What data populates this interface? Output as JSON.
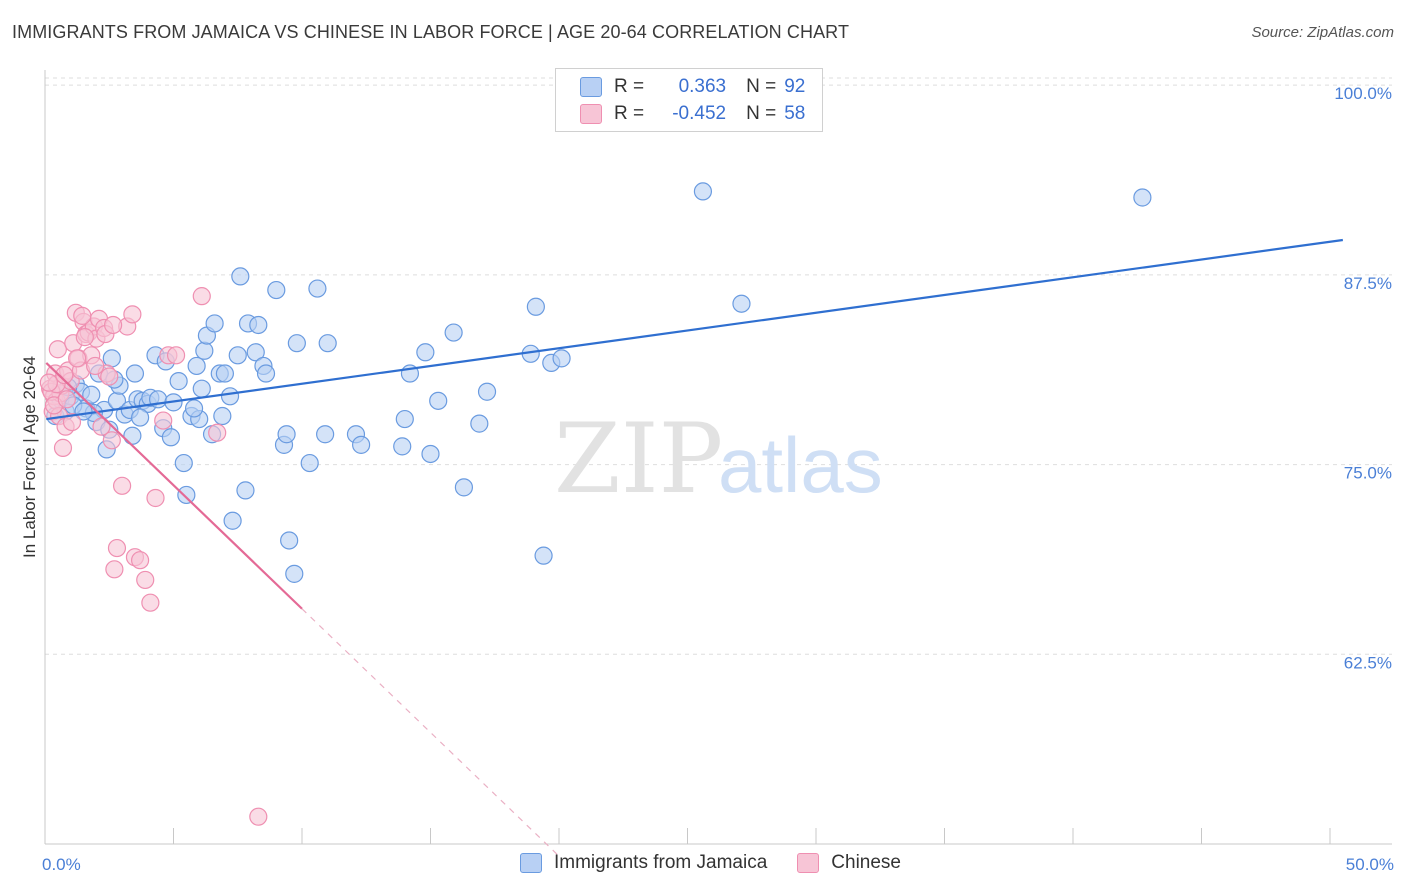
{
  "title": "IMMIGRANTS FROM JAMAICA VS CHINESE IN LABOR FORCE | AGE 20-64 CORRELATION CHART",
  "source": "Source: ZipAtlas.com",
  "watermark": {
    "zip": "ZIP",
    "atlas": "atlas"
  },
  "legend": {
    "rows": [
      {
        "r_label": "R =",
        "r_value": "0.363",
        "n_label": "N =",
        "n_value": "92"
      },
      {
        "r_label": "R =",
        "r_value": "-0.452",
        "n_label": "N =",
        "n_value": "58"
      }
    ]
  },
  "colors": {
    "jamaica_fill": "#b8d0f4",
    "jamaica_stroke": "#6a9be0",
    "jamaica_line": "#2f6fd0",
    "chinese_fill": "#f7c5d6",
    "chinese_stroke": "#ef8fb1",
    "chinese_line": "#e46a96",
    "tick_text": "#4a7fd6"
  },
  "chart_data": {
    "type": "scatter",
    "title": "IMMIGRANTS FROM JAMAICA VS CHINESE IN LABOR FORCE | AGE 20-64 CORRELATION CHART",
    "xlabel": "",
    "ylabel": "In Labor Force | Age 20-64",
    "xlim": [
      0,
      50
    ],
    "ylim": [
      50,
      101
    ],
    "x_ticks": [
      "0.0%",
      "50.0%"
    ],
    "y_ticks": [
      {
        "value": 100,
        "label": "100.0%"
      },
      {
        "value": 87.5,
        "label": "87.5%"
      },
      {
        "value": 75,
        "label": "75.0%"
      },
      {
        "value": 62.5,
        "label": "62.5%"
      }
    ],
    "grid": true,
    "legend_position": "top-center",
    "series": [
      {
        "name": "Immigrants from Jamaica",
        "r": 0.363,
        "n": 92,
        "trend": {
          "x0": 0.05,
          "y0": 78.0,
          "x1": 50.5,
          "y1": 89.8
        },
        "points": [
          [
            0.4,
            78.2
          ],
          [
            0.6,
            79.3
          ],
          [
            0.8,
            78.5
          ],
          [
            1.0,
            79.5
          ],
          [
            1.2,
            80.3
          ],
          [
            1.4,
            79.8
          ],
          [
            1.6,
            78.7
          ],
          [
            1.8,
            79.6
          ],
          [
            2.0,
            77.8
          ],
          [
            2.1,
            81.0
          ],
          [
            2.3,
            78.6
          ],
          [
            2.5,
            77.3
          ],
          [
            2.6,
            82.0
          ],
          [
            2.8,
            79.2
          ],
          [
            2.9,
            80.2
          ],
          [
            3.1,
            78.3
          ],
          [
            3.3,
            78.6
          ],
          [
            3.4,
            76.9
          ],
          [
            3.5,
            81.0
          ],
          [
            3.6,
            79.3
          ],
          [
            3.8,
            79.2
          ],
          [
            4.0,
            79.0
          ],
          [
            4.1,
            79.4
          ],
          [
            4.3,
            82.2
          ],
          [
            4.4,
            79.3
          ],
          [
            4.6,
            77.4
          ],
          [
            4.7,
            81.8
          ],
          [
            5.0,
            79.1
          ],
          [
            5.2,
            80.5
          ],
          [
            5.4,
            75.1
          ],
          [
            5.5,
            73.0
          ],
          [
            5.7,
            78.2
          ],
          [
            5.9,
            81.5
          ],
          [
            6.0,
            78.0
          ],
          [
            6.1,
            80.0
          ],
          [
            6.2,
            82.5
          ],
          [
            6.3,
            83.5
          ],
          [
            6.5,
            77.0
          ],
          [
            6.6,
            84.3
          ],
          [
            6.8,
            81.0
          ],
          [
            6.9,
            78.2
          ],
          [
            7.0,
            81.0
          ],
          [
            7.2,
            79.5
          ],
          [
            7.3,
            71.3
          ],
          [
            7.5,
            82.2
          ],
          [
            7.6,
            87.4
          ],
          [
            7.8,
            73.3
          ],
          [
            7.9,
            84.3
          ],
          [
            8.2,
            82.4
          ],
          [
            8.3,
            84.2
          ],
          [
            8.5,
            81.5
          ],
          [
            8.6,
            81.0
          ],
          [
            9.0,
            86.5
          ],
          [
            9.3,
            76.3
          ],
          [
            9.4,
            77.0
          ],
          [
            9.5,
            70.0
          ],
          [
            9.7,
            67.8
          ],
          [
            9.8,
            83.0
          ],
          [
            10.3,
            75.1
          ],
          [
            10.6,
            86.6
          ],
          [
            10.9,
            77.0
          ],
          [
            11.0,
            83.0
          ],
          [
            12.1,
            77.0
          ],
          [
            12.3,
            76.3
          ],
          [
            13.9,
            76.2
          ],
          [
            14.0,
            78.0
          ],
          [
            14.2,
            81.0
          ],
          [
            14.8,
            82.4
          ],
          [
            15.0,
            75.7
          ],
          [
            15.3,
            79.2
          ],
          [
            15.9,
            83.7
          ],
          [
            16.3,
            73.5
          ],
          [
            16.9,
            77.7
          ],
          [
            17.2,
            79.8
          ],
          [
            18.9,
            82.3
          ],
          [
            19.1,
            85.4
          ],
          [
            19.4,
            69.0
          ],
          [
            19.7,
            81.7
          ],
          [
            20.1,
            82.0
          ],
          [
            20.2,
            100.2
          ],
          [
            25.6,
            93.0
          ],
          [
            27.1,
            85.6
          ],
          [
            42.7,
            92.6
          ],
          [
            1.1,
            78.9
          ],
          [
            1.9,
            78.4
          ],
          [
            2.7,
            80.6
          ],
          [
            3.7,
            78.1
          ],
          [
            0.9,
            80.1
          ],
          [
            1.5,
            78.5
          ],
          [
            4.9,
            76.8
          ],
          [
            5.8,
            78.7
          ],
          [
            2.4,
            76.0
          ]
        ]
      },
      {
        "name": "Chinese",
        "r": -0.452,
        "n": 58,
        "trend": {
          "x0": 0.05,
          "y0": 81.7,
          "x1": 10.0,
          "y1": 65.5
        },
        "trend_dashed": {
          "x0": 10.0,
          "y0": 65.5,
          "x1": 20.0,
          "y1": 49.2
        },
        "points": [
          [
            0.2,
            80.0
          ],
          [
            0.3,
            78.5
          ],
          [
            0.35,
            79.5
          ],
          [
            0.4,
            81.0
          ],
          [
            0.45,
            79.2
          ],
          [
            0.5,
            82.6
          ],
          [
            0.55,
            78.2
          ],
          [
            0.6,
            79.7
          ],
          [
            0.65,
            80.2
          ],
          [
            0.7,
            76.1
          ],
          [
            0.8,
            77.5
          ],
          [
            0.9,
            81.2
          ],
          [
            1.0,
            80.5
          ],
          [
            1.1,
            83.0
          ],
          [
            1.2,
            85.0
          ],
          [
            1.3,
            82.0
          ],
          [
            1.4,
            81.2
          ],
          [
            1.5,
            84.4
          ],
          [
            1.6,
            83.6
          ],
          [
            1.7,
            83.7
          ],
          [
            1.8,
            82.2
          ],
          [
            1.9,
            84.1
          ],
          [
            2.0,
            83.3
          ],
          [
            2.1,
            84.6
          ],
          [
            2.2,
            77.5
          ],
          [
            2.3,
            84.0
          ],
          [
            2.4,
            81.0
          ],
          [
            2.5,
            80.8
          ],
          [
            2.6,
            76.6
          ],
          [
            2.7,
            68.1
          ],
          [
            2.8,
            69.5
          ],
          [
            3.0,
            73.6
          ],
          [
            3.2,
            84.1
          ],
          [
            3.4,
            84.9
          ],
          [
            3.5,
            68.9
          ],
          [
            3.7,
            68.7
          ],
          [
            3.9,
            67.4
          ],
          [
            4.1,
            65.9
          ],
          [
            4.3,
            72.8
          ],
          [
            4.6,
            77.9
          ],
          [
            4.8,
            82.2
          ],
          [
            5.1,
            82.2
          ],
          [
            6.1,
            86.1
          ],
          [
            6.7,
            77.1
          ],
          [
            8.3,
            51.8
          ],
          [
            0.25,
            79.8
          ],
          [
            0.45,
            80.3
          ],
          [
            0.75,
            80.9
          ],
          [
            1.05,
            77.8
          ],
          [
            1.25,
            82.0
          ],
          [
            1.55,
            83.4
          ],
          [
            2.35,
            83.6
          ],
          [
            0.15,
            80.4
          ],
          [
            0.35,
            78.9
          ],
          [
            0.85,
            79.3
          ],
          [
            1.45,
            84.8
          ],
          [
            1.95,
            81.5
          ],
          [
            2.65,
            84.2
          ]
        ]
      }
    ]
  }
}
